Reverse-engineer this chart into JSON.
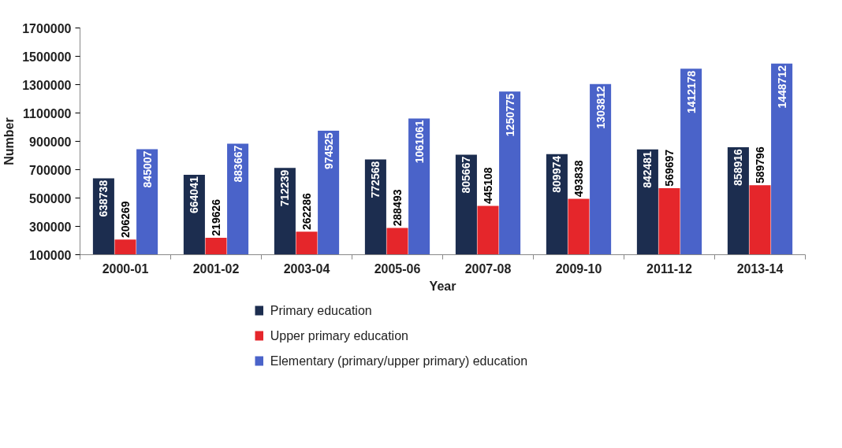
{
  "chart_data": {
    "type": "bar",
    "xlabel": "Year",
    "ylabel": "Number",
    "categories": [
      "2000-01",
      "2001-02",
      "2003-04",
      "2005-06",
      "2007-08",
      "2009-10",
      "2011-12",
      "2013-14"
    ],
    "series": [
      {
        "name": "Primary education",
        "color": "#1c2d4f",
        "values": [
          638738,
          664041,
          712239,
          772568,
          805667,
          809974,
          842481,
          858916
        ]
      },
      {
        "name": "Upper primary education",
        "color": "#e5262b",
        "values": [
          206269,
          219626,
          262286,
          288493,
          445108,
          493838,
          569697,
          589796
        ]
      },
      {
        "name": "Elementary (primary/upper primary) education",
        "color": "#4a63c9",
        "values": [
          845007,
          883667,
          974525,
          1061061,
          1250775,
          1303812,
          1412178,
          1448712
        ]
      }
    ],
    "ylim": [
      100000,
      1700000
    ],
    "yticks": [
      100000,
      300000,
      500000,
      700000,
      900000,
      1100000,
      1300000,
      1500000,
      1700000
    ],
    "data_labels": true,
    "legend": "bottom",
    "grid": false
  }
}
